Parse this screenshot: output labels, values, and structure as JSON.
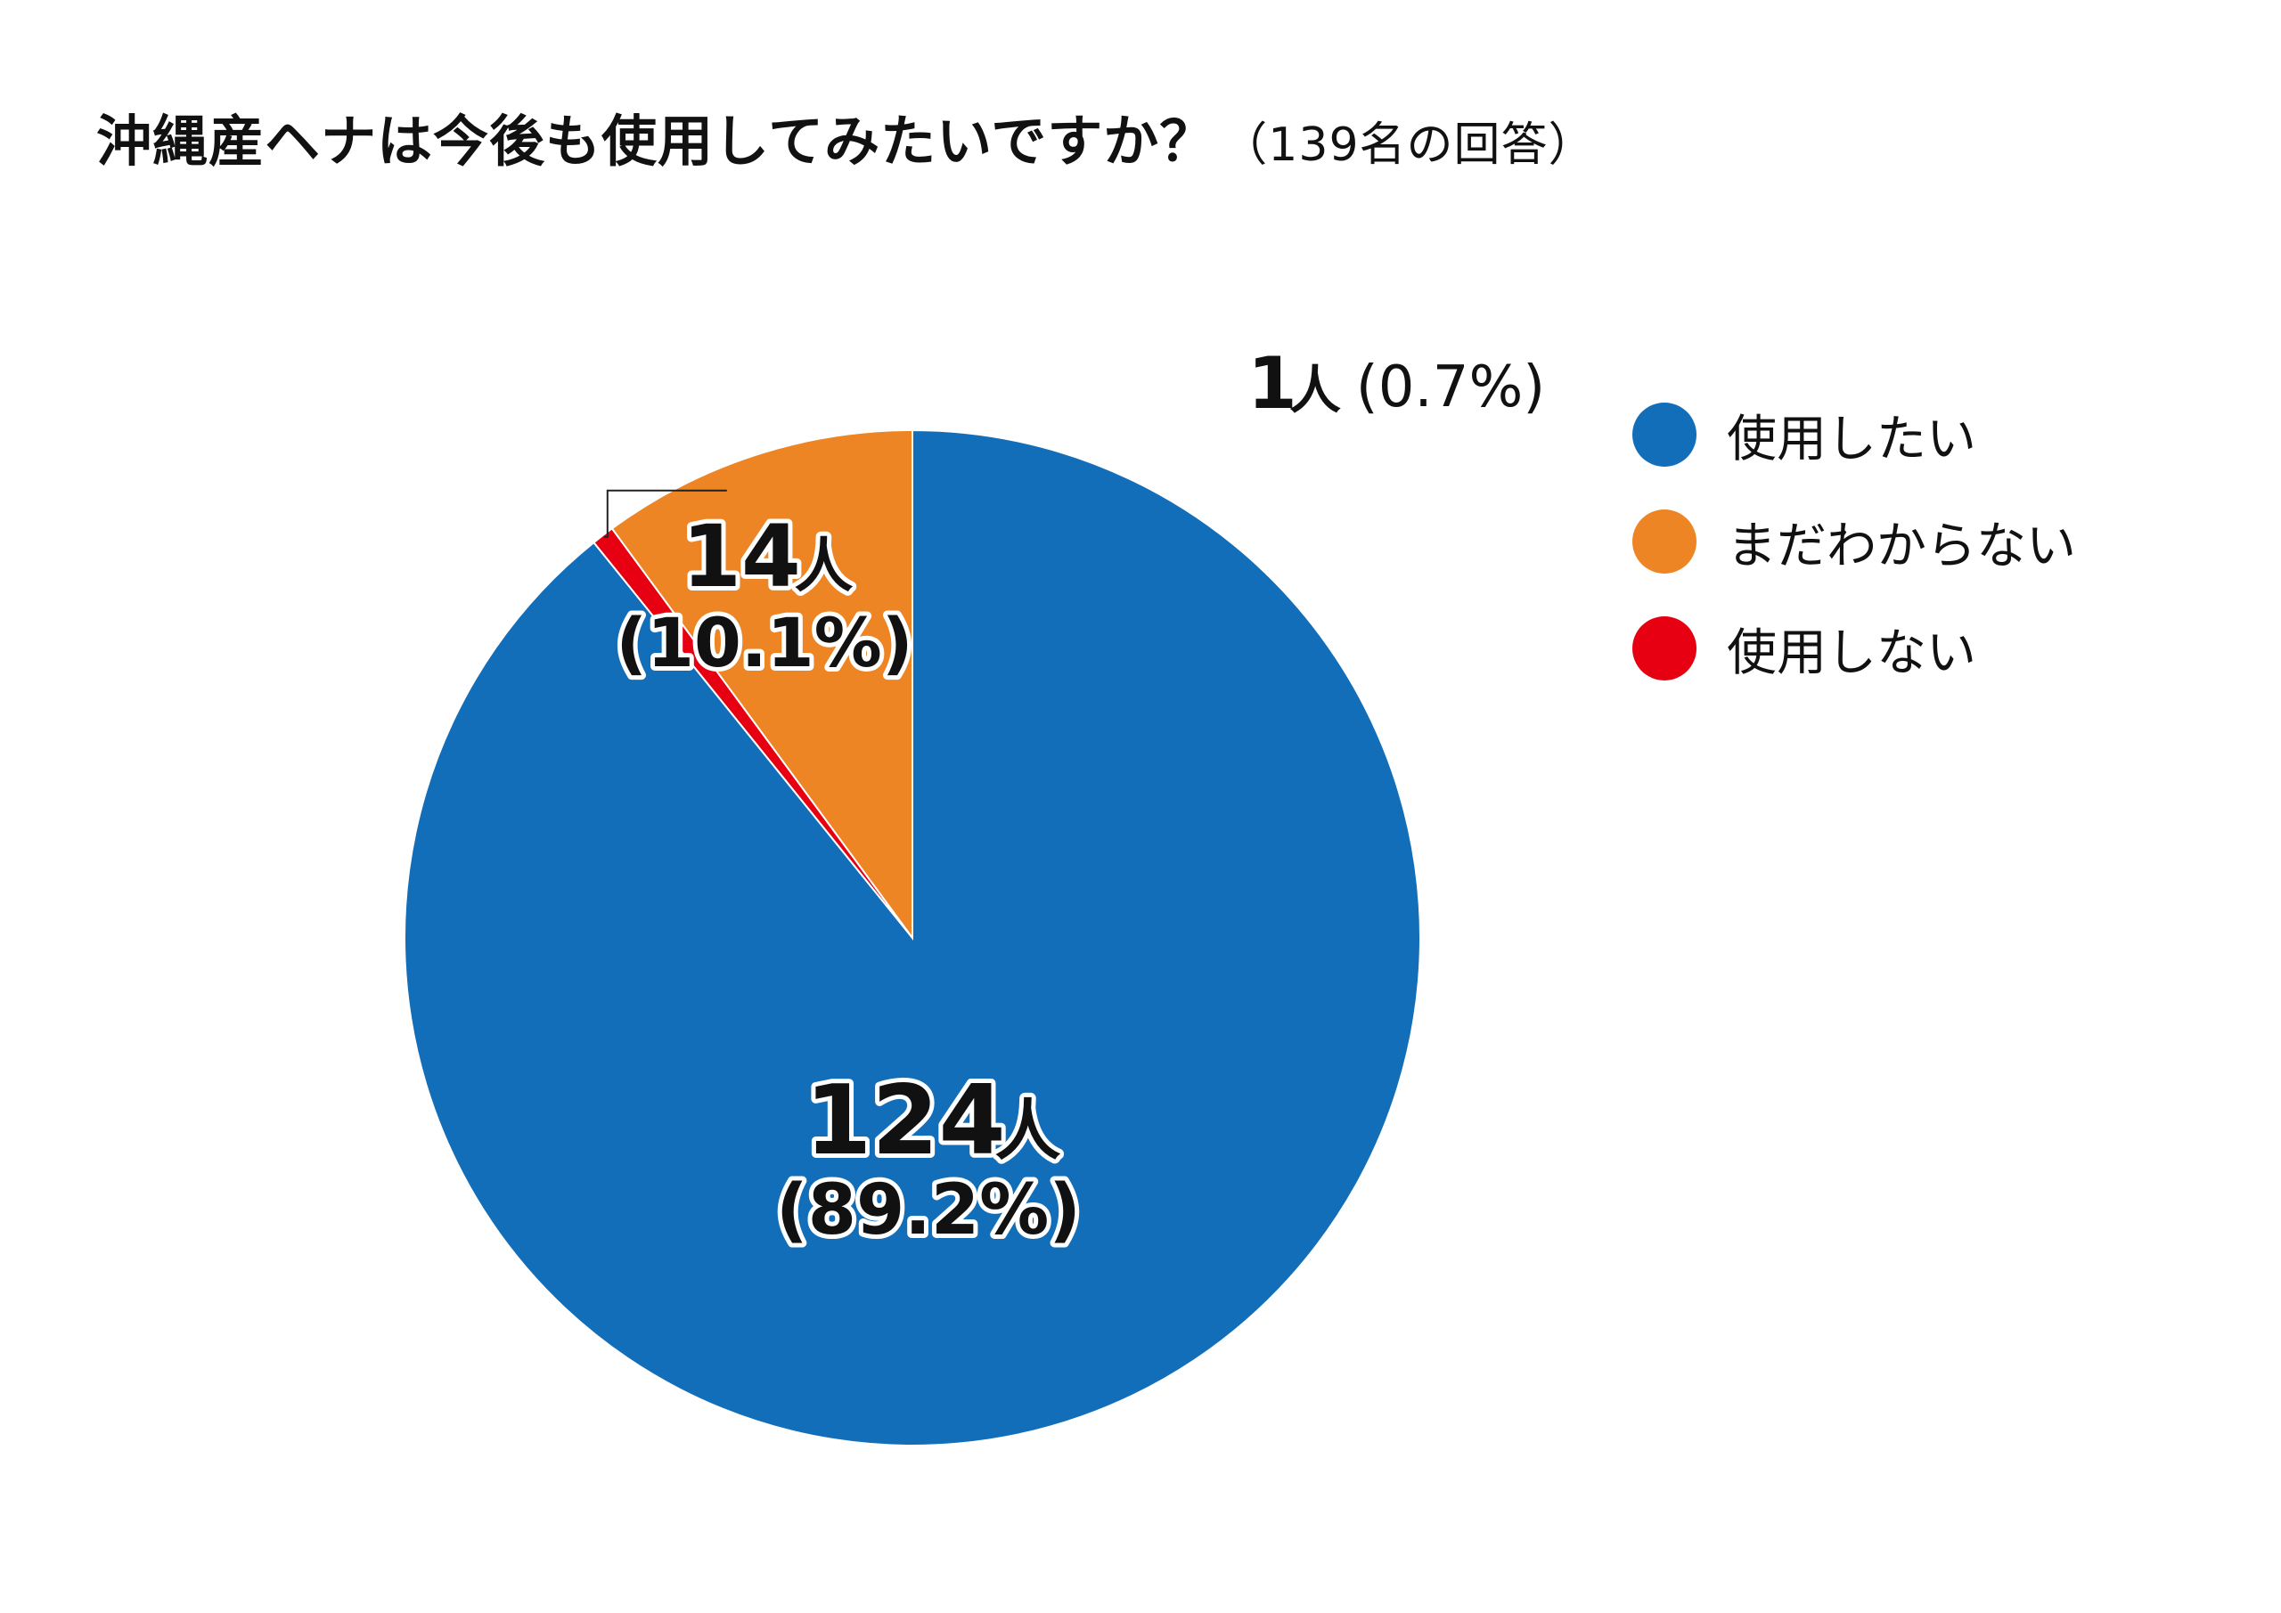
{
  "title": "沖縄産ヘナは今後も使用してみたいですか？",
  "title_sub": "（139名の回答）",
  "chart_data": {
    "type": "pie",
    "title": "沖縄産ヘナは今後も使用してみたいですか？（139名の回答）",
    "start_angle": "top",
    "direction": "clockwise",
    "slices": [
      {
        "name": "使用したい",
        "count": 124,
        "percent": 89.2,
        "label_count": "124人",
        "label_percent": "(89.2%)",
        "color": "#126EB8"
      },
      {
        "name": "使用しない",
        "count": 1,
        "percent": 0.7,
        "label_count": "1人",
        "label_percent": "(0.7%)",
        "color": "#E60012"
      },
      {
        "name": "まだわからない",
        "count": 14,
        "percent": 10.1,
        "label_count": "14人",
        "label_percent": "(10.1%)",
        "color": "#EE8524"
      }
    ],
    "legend_position": "right",
    "legend": [
      {
        "name": "使用したい",
        "color": "#126EB8"
      },
      {
        "name": "まだわからない",
        "color": "#EE8524"
      },
      {
        "name": "使用しない",
        "color": "#E60012"
      }
    ]
  }
}
